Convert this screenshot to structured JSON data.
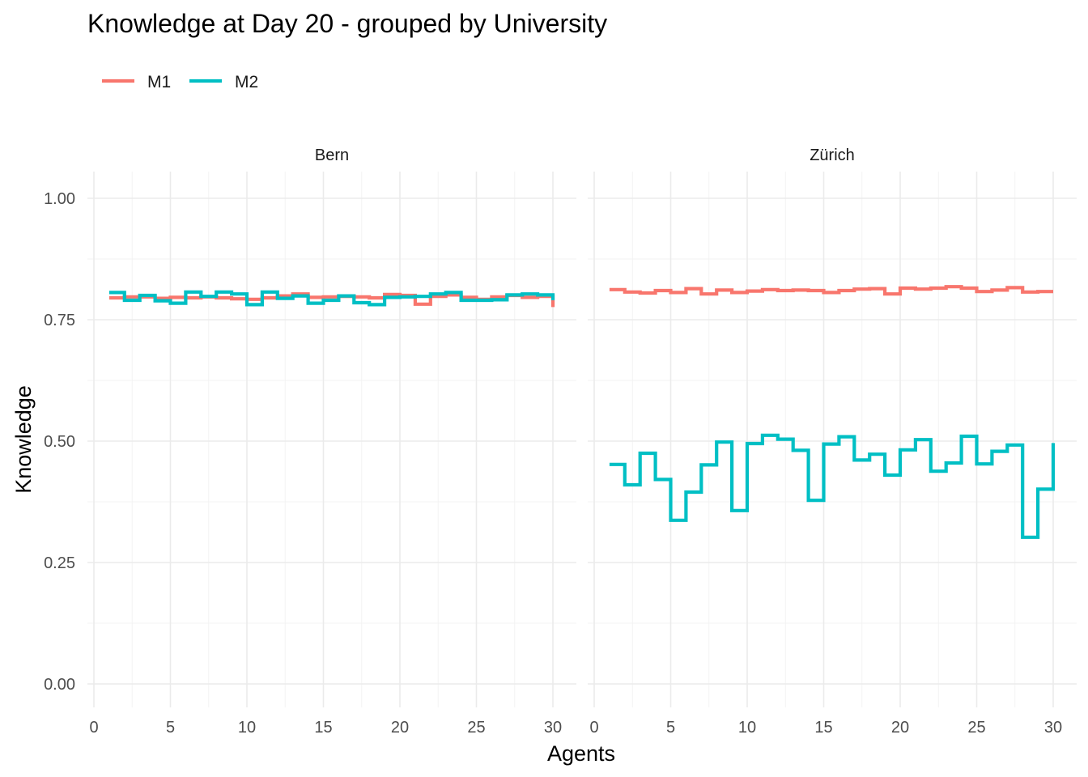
{
  "chart_data": {
    "type": "line",
    "step": true,
    "title": "Knowledge at Day 20 - grouped by University",
    "xlabel": "Agents",
    "ylabel": "Knowledge",
    "xlim": [
      0,
      30
    ],
    "ylim": [
      0,
      1
    ],
    "x_ticks": [
      "0",
      "5",
      "10",
      "15",
      "20",
      "25",
      "30"
    ],
    "y_ticks": [
      "0.00",
      "0.25",
      "0.50",
      "0.75",
      "1.00"
    ],
    "grid": true,
    "legend_position": "top-left",
    "legend": [
      {
        "name": "M1",
        "color": "#F8766D"
      },
      {
        "name": "M2",
        "color": "#00BFC4"
      }
    ],
    "facets": [
      {
        "name": "Bern",
        "series": [
          {
            "name": "M1",
            "color": "#F8766D",
            "x": [
              1,
              2,
              3,
              4,
              5,
              6,
              7,
              8,
              9,
              10,
              11,
              12,
              13,
              14,
              15,
              16,
              17,
              18,
              19,
              20,
              21,
              22,
              23,
              24,
              25,
              26,
              27,
              28,
              29,
              30
            ],
            "values": [
              0.795,
              0.797,
              0.797,
              0.794,
              0.796,
              0.795,
              0.797,
              0.795,
              0.793,
              0.792,
              0.795,
              0.799,
              0.803,
              0.796,
              0.797,
              0.798,
              0.797,
              0.795,
              0.802,
              0.8,
              0.782,
              0.798,
              0.801,
              0.796,
              0.792,
              0.797,
              0.8,
              0.796,
              0.798,
              0.776
            ]
          },
          {
            "name": "M2",
            "color": "#00BFC4",
            "x": [
              1,
              2,
              3,
              4,
              5,
              6,
              7,
              8,
              9,
              10,
              11,
              12,
              13,
              14,
              15,
              16,
              17,
              18,
              19,
              20,
              21,
              22,
              23,
              24,
              25,
              26,
              27,
              28,
              29,
              30
            ],
            "values": [
              0.806,
              0.79,
              0.8,
              0.789,
              0.784,
              0.807,
              0.798,
              0.807,
              0.803,
              0.781,
              0.807,
              0.794,
              0.799,
              0.784,
              0.79,
              0.799,
              0.785,
              0.781,
              0.796,
              0.797,
              0.798,
              0.803,
              0.806,
              0.79,
              0.79,
              0.791,
              0.801,
              0.803,
              0.801,
              0.79
            ]
          }
        ]
      },
      {
        "name": "Zürich",
        "series": [
          {
            "name": "M1",
            "color": "#F8766D",
            "x": [
              1,
              2,
              3,
              4,
              5,
              6,
              7,
              8,
              9,
              10,
              11,
              12,
              13,
              14,
              15,
              16,
              17,
              18,
              19,
              20,
              21,
              22,
              23,
              24,
              25,
              26,
              27,
              28,
              29,
              30
            ],
            "values": [
              0.812,
              0.807,
              0.805,
              0.81,
              0.806,
              0.814,
              0.803,
              0.811,
              0.806,
              0.809,
              0.812,
              0.81,
              0.811,
              0.81,
              0.806,
              0.81,
              0.813,
              0.814,
              0.803,
              0.815,
              0.813,
              0.815,
              0.818,
              0.815,
              0.808,
              0.811,
              0.816,
              0.807,
              0.808,
              0.808
            ]
          },
          {
            "name": "M2",
            "color": "#00BFC4",
            "x": [
              1,
              2,
              3,
              4,
              5,
              6,
              7,
              8,
              9,
              10,
              11,
              12,
              13,
              14,
              15,
              16,
              17,
              18,
              19,
              20,
              21,
              22,
              23,
              24,
              25,
              26,
              27,
              28,
              29,
              30
            ],
            "values": [
              0.452,
              0.41,
              0.475,
              0.421,
              0.337,
              0.395,
              0.451,
              0.498,
              0.357,
              0.495,
              0.512,
              0.504,
              0.481,
              0.378,
              0.494,
              0.509,
              0.461,
              0.473,
              0.43,
              0.482,
              0.503,
              0.438,
              0.455,
              0.51,
              0.453,
              0.479,
              0.492,
              0.302,
              0.401,
              0.496
            ]
          }
        ]
      }
    ]
  }
}
